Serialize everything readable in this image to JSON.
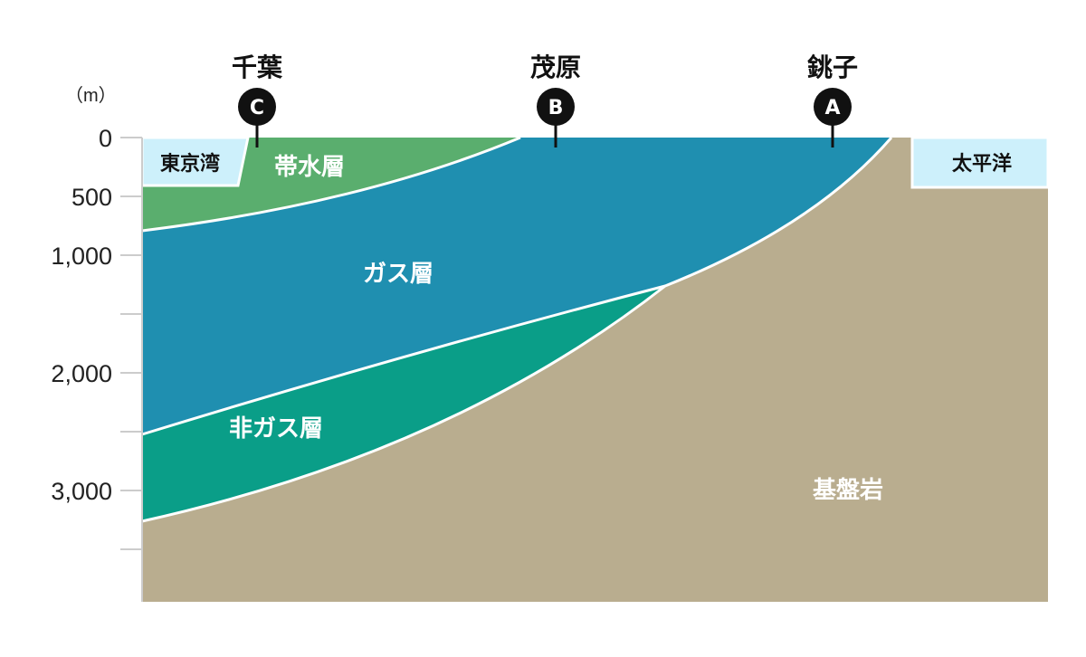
{
  "unit_label": "（m）",
  "axis": {
    "ticks": [
      {
        "value": 0,
        "label": "0"
      },
      {
        "value": 500,
        "label": "500"
      },
      {
        "value": 1000,
        "label": "1,000"
      },
      {
        "value": 1500,
        "label": ""
      },
      {
        "value": 2000,
        "label": "2,000"
      },
      {
        "value": 2500,
        "label": ""
      },
      {
        "value": 3000,
        "label": "3,000"
      },
      {
        "value": 3500,
        "label": ""
      }
    ]
  },
  "locations": [
    {
      "name": "千葉",
      "marker": "C"
    },
    {
      "name": "茂原",
      "marker": "B"
    },
    {
      "name": "銚子",
      "marker": "A"
    }
  ],
  "seas": {
    "left": "東京湾",
    "right": "太平洋"
  },
  "layers": {
    "aquifer": "帯水層",
    "gas": "ガス層",
    "non_gas": "非ガス層",
    "basement": "基盤岩"
  },
  "colors": {
    "aquifer": "#5aae6e",
    "gas": "#1f8fb0",
    "non_gas": "#0a9e88",
    "basement": "#b9ad8f",
    "sea": "#cdf0fb"
  }
}
